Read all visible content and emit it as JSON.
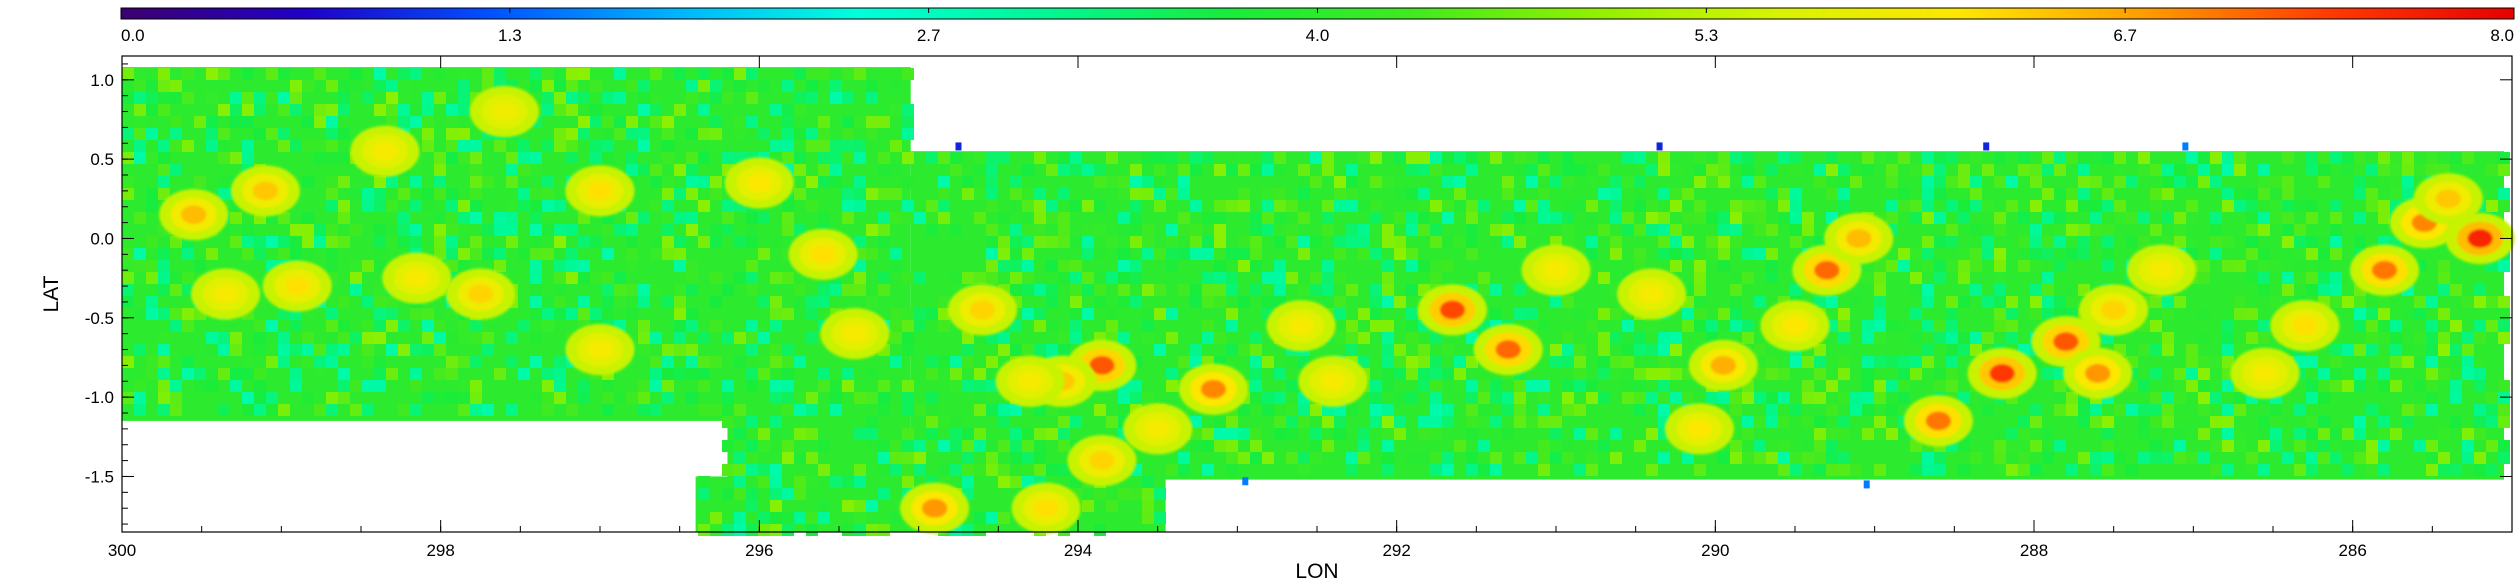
{
  "chart_data": {
    "type": "heatmap",
    "title": "",
    "xlabel": "LON",
    "ylabel": "LAT",
    "xlim": [
      300,
      285
    ],
    "ylim": [
      -1.85,
      1.15
    ],
    "x_ticks": [
      300,
      298,
      296,
      294,
      292,
      290,
      288,
      286
    ],
    "x_tick_labels": [
      "300",
      "298",
      "296",
      "294",
      "292",
      "290",
      "288",
      "286"
    ],
    "y_ticks": [
      1.0,
      0.5,
      0.0,
      -0.5,
      -1.0,
      -1.5
    ],
    "y_tick_labels": [
      "1.0",
      "0.5",
      "0.0",
      "-0.5",
      "-1.0",
      "-1.5"
    ],
    "colorbar": {
      "range": [
        0.0,
        8.0
      ],
      "ticks": [
        0.0,
        1.3,
        2.7,
        4.0,
        5.3,
        6.7,
        8.0
      ],
      "tick_labels": [
        "0.0",
        "1.3",
        "2.7",
        "4.0",
        "5.3",
        "6.7",
        "8.0"
      ],
      "position": "top",
      "colormap": [
        "#3c006e",
        "#2000c8",
        "#0050ff",
        "#00b4ff",
        "#00ffdc",
        "#00f896",
        "#18ec3c",
        "#40ea20",
        "#90f000",
        "#d8f400",
        "#ffe600",
        "#ff9c00",
        "#ff3a00",
        "#e80000"
      ]
    },
    "background_level": 4.0,
    "coverage_regions": [
      {
        "lon_range": [
          300,
          295.05
        ],
        "lat_range": [
          -1.15,
          1.08
        ]
      },
      {
        "lon_range": [
          295.05,
          285.05
        ],
        "lat_range": [
          -1.52,
          0.55
        ]
      },
      {
        "lon_range": [
          296.2,
          295.05
        ],
        "lat_range": [
          -1.52,
          -0.95
        ]
      },
      {
        "lon_range": [
          296.4,
          293.45
        ],
        "lat_range": [
          -1.85,
          -1.5
        ]
      }
    ],
    "hotspots": [
      {
        "lon": 288.2,
        "lat": -0.85,
        "level": 7.4
      },
      {
        "lon": 287.8,
        "lat": -0.65,
        "level": 7.2
      },
      {
        "lon": 287.6,
        "lat": -0.85,
        "level": 6.8
      },
      {
        "lon": 287.5,
        "lat": -0.45,
        "level": 6.3
      },
      {
        "lon": 288.6,
        "lat": -1.15,
        "level": 7.0
      },
      {
        "lon": 291.65,
        "lat": -0.45,
        "level": 7.3
      },
      {
        "lon": 291.3,
        "lat": -0.7,
        "level": 7.1
      },
      {
        "lon": 293.85,
        "lat": -0.8,
        "level": 7.2
      },
      {
        "lon": 294.1,
        "lat": -0.9,
        "level": 6.4
      },
      {
        "lon": 293.85,
        "lat": -1.4,
        "level": 6.3
      },
      {
        "lon": 294.9,
        "lat": -1.7,
        "level": 6.8
      },
      {
        "lon": 293.15,
        "lat": -0.95,
        "level": 6.9
      },
      {
        "lon": 289.3,
        "lat": -0.2,
        "level": 7.1
      },
      {
        "lon": 289.1,
        "lat": 0.0,
        "level": 6.5
      },
      {
        "lon": 289.95,
        "lat": -0.8,
        "level": 6.6
      },
      {
        "lon": 285.8,
        "lat": -0.2,
        "level": 7.0
      },
      {
        "lon": 285.55,
        "lat": 0.1,
        "level": 6.9
      },
      {
        "lon": 285.2,
        "lat": 0.0,
        "level": 7.6
      },
      {
        "lon": 285.4,
        "lat": 0.25,
        "level": 6.4
      },
      {
        "lon": 294.3,
        "lat": -0.9,
        "level": 6.0
      },
      {
        "lon": 299.35,
        "lat": -0.35,
        "level": 6.0
      },
      {
        "lon": 298.9,
        "lat": -0.3,
        "level": 6.2
      },
      {
        "lon": 298.15,
        "lat": -0.25,
        "level": 6.0
      },
      {
        "lon": 297.75,
        "lat": -0.35,
        "level": 6.3
      },
      {
        "lon": 297.0,
        "lat": 0.3,
        "level": 6.2
      },
      {
        "lon": 299.1,
        "lat": 0.3,
        "level": 6.4
      },
      {
        "lon": 299.55,
        "lat": 0.15,
        "level": 6.5
      },
      {
        "lon": 297.0,
        "lat": -0.7,
        "level": 6.0
      },
      {
        "lon": 296.0,
        "lat": 0.35,
        "level": 6.1
      },
      {
        "lon": 295.6,
        "lat": -0.1,
        "level": 6.2
      },
      {
        "lon": 294.6,
        "lat": -0.45,
        "level": 6.3
      },
      {
        "lon": 292.6,
        "lat": -0.55,
        "level": 6.0
      },
      {
        "lon": 290.4,
        "lat": -0.35,
        "level": 6.0
      },
      {
        "lon": 286.3,
        "lat": -0.55,
        "level": 6.2
      },
      {
        "lon": 286.55,
        "lat": -0.85,
        "level": 6.0
      },
      {
        "lon": 287.2,
        "lat": -0.2,
        "level": 6.0
      },
      {
        "lon": 289.5,
        "lat": -0.55,
        "level": 6.1
      },
      {
        "lon": 290.1,
        "lat": -1.2,
        "level": 6.1
      },
      {
        "lon": 292.4,
        "lat": -0.9,
        "level": 6.0
      },
      {
        "lon": 291.0,
        "lat": -0.2,
        "level": 6.0
      },
      {
        "lon": 295.4,
        "lat": -0.6,
        "level": 6.0
      },
      {
        "lon": 294.2,
        "lat": -1.7,
        "level": 6.2
      },
      {
        "lon": 293.5,
        "lat": -1.2,
        "level": 6.0
      },
      {
        "lon": 298.35,
        "lat": 0.55,
        "level": 6.0
      },
      {
        "lon": 297.6,
        "lat": 0.8,
        "level": 5.9
      }
    ],
    "low_value_markers": [
      {
        "lon": 294.75,
        "lat": 0.58,
        "level": 0.9
      },
      {
        "lon": 290.35,
        "lat": 0.58,
        "level": 0.9
      },
      {
        "lon": 288.3,
        "lat": 0.58,
        "level": 0.9
      },
      {
        "lon": 287.05,
        "lat": 0.58,
        "level": 1.5
      },
      {
        "lon": 289.05,
        "lat": -1.55,
        "level": 1.5
      },
      {
        "lon": 292.95,
        "lat": -1.53,
        "level": 1.5
      }
    ]
  }
}
